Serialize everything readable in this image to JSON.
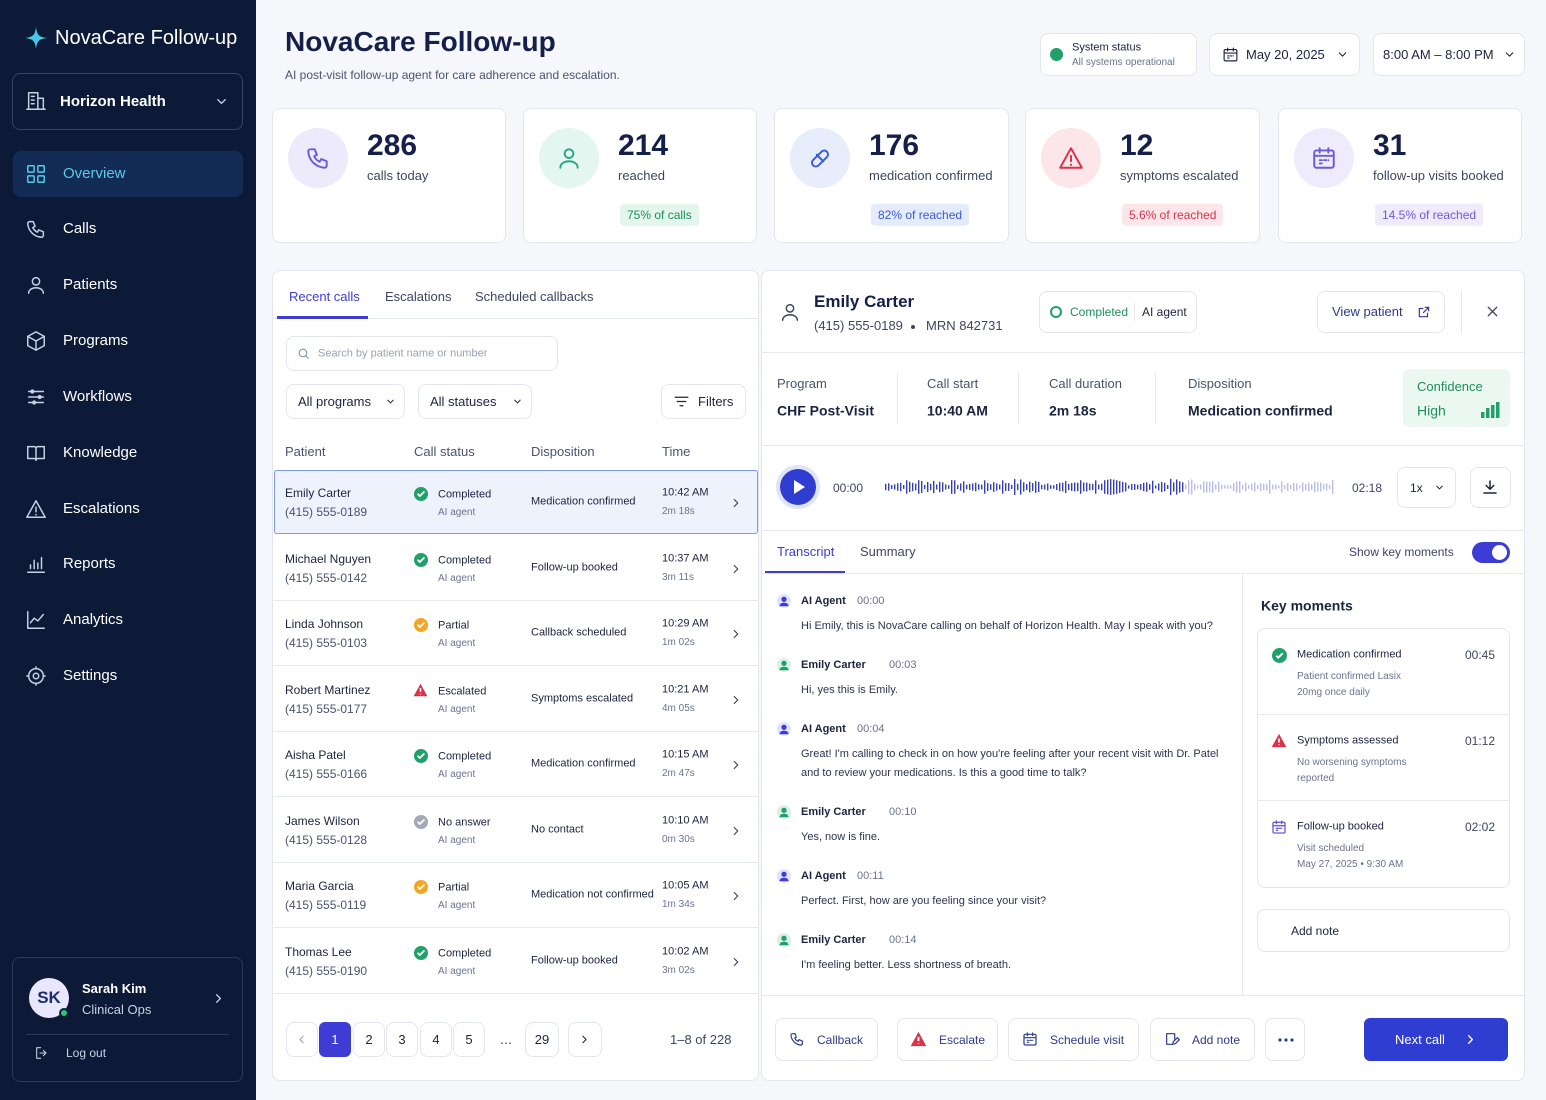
{
  "sidebar": {
    "brand": "NovaCare Follow-up",
    "org": "Horizon Health",
    "nav": [
      "Overview",
      "Calls",
      "Patients",
      "Programs",
      "Workflows",
      "Knowledge",
      "Escalations",
      "Reports",
      "Analytics",
      "Settings"
    ],
    "user": {
      "initials": "SK",
      "name": "Sarah Kim",
      "role": "Clinical Ops"
    },
    "logout": "Log out"
  },
  "header": {
    "title": "NovaCare Follow-up",
    "subtitle": "AI post-visit follow-up agent for care adherence and escalation.",
    "status_title": "System status",
    "status_text": "All systems operational",
    "date": "May 20, 2025",
    "hours": "8:00 AM – 8:00 PM"
  },
  "stats": [
    {
      "value": 286,
      "label": "calls today"
    },
    {
      "value": 214,
      "label": "reached",
      "badge": "75% of calls"
    },
    {
      "value": 176,
      "label": "medication confirmed",
      "badge": "82% of reached"
    },
    {
      "value": 12,
      "label": "symptoms escalated",
      "badge": "5.6% of reached"
    },
    {
      "value": 31,
      "label": "follow-up visits booked",
      "badge": "14.5% of reached"
    }
  ],
  "calls_panel": {
    "tabs": [
      "Recent calls",
      "Escalations",
      "Scheduled callbacks"
    ],
    "search_placeholder": "Search by patient name or number",
    "filters": [
      "All programs",
      "All statuses"
    ],
    "filters_button": "Filters",
    "columns": [
      "Patient",
      "Call status",
      "Disposition",
      "Time"
    ],
    "rows": [
      {
        "name": "Emily Carter",
        "phone": "(415) 555-0189",
        "status": "Completed",
        "agent": "AI agent",
        "disposition": "Medication confirmed",
        "time": "10:42 AM",
        "duration": "2m 18s",
        "color": "#22a06b"
      },
      {
        "name": "Michael Nguyen",
        "phone": "(415) 555-0142",
        "status": "Completed",
        "agent": "AI agent",
        "disposition": "Follow-up booked",
        "time": "10:37 AM",
        "duration": "3m 11s",
        "color": "#22a06b"
      },
      {
        "name": "Linda Johnson",
        "phone": "(415) 555-0103",
        "status": "Partial",
        "agent": "AI agent",
        "disposition": "Callback scheduled",
        "time": "10:29 AM",
        "duration": "1m 02s",
        "color": "#f5a524"
      },
      {
        "name": "Robert Martinez",
        "phone": "(415) 555-0177",
        "status": "Escalated",
        "agent": "AI agent",
        "disposition": "Symptoms escalated",
        "time": "10:21 AM",
        "duration": "4m 05s",
        "color": "#d9324a"
      },
      {
        "name": "Aisha Patel",
        "phone": "(415) 555-0166",
        "status": "Completed",
        "agent": "AI agent",
        "disposition": "Medication confirmed",
        "time": "10:15 AM",
        "duration": "2m 47s",
        "color": "#22a06b"
      },
      {
        "name": "James Wilson",
        "phone": "(415) 555-0128",
        "status": "No answer",
        "agent": "AI agent",
        "disposition": "No contact",
        "time": "10:10 AM",
        "duration": "0m 30s",
        "color": "#a3a9b8"
      },
      {
        "name": "Maria Garcia",
        "phone": "(415) 555-0119",
        "status": "Partial",
        "agent": "AI agent",
        "disposition": "Medication not confirmed",
        "time": "10:05 AM",
        "duration": "1m 34s",
        "color": "#f5a524"
      },
      {
        "name": "Thomas Lee",
        "phone": "(415) 555-0190",
        "status": "Completed",
        "agent": "AI agent",
        "disposition": "Follow-up booked",
        "time": "10:02 AM",
        "duration": "3m 02s",
        "color": "#22a06b"
      }
    ],
    "pages": [
      1,
      2,
      3,
      4,
      5,
      "…",
      29
    ],
    "range": "1–8 of 228"
  },
  "detail": {
    "name": "Emily Carter",
    "phone": "(415) 555-0189",
    "mrn": "MRN 842731",
    "status": "Completed",
    "agent": "AI agent",
    "view_button": "View patient",
    "fields": [
      {
        "label": "Program",
        "value": "CHF Post-Visit"
      },
      {
        "label": "Call start",
        "value": "10:40 AM"
      },
      {
        "label": "Call duration",
        "value": "2m 18s"
      },
      {
        "label": "Disposition",
        "value": "Medication confirmed"
      }
    ],
    "confidence": {
      "label": "Confidence",
      "value": "High"
    },
    "audio": {
      "start": "00:00",
      "end": "02:18",
      "speed": "1x"
    },
    "tabs": [
      "Transcript",
      "Summary"
    ],
    "toggle_label": "Show key moments",
    "transcript": [
      {
        "speaker": "AI Agent",
        "time": "00:00",
        "text": "Hi Emily, this is NovaCare calling on behalf of Horizon Health. May I speak with you?"
      },
      {
        "speaker": "Emily Carter",
        "time": "00:03",
        "text": "Hi, yes this is Emily."
      },
      {
        "speaker": "AI Agent",
        "time": "00:04",
        "text": "Great! I'm calling to check in on how you're feeling after your recent visit with Dr. Patel and to review your medications. Is this a good time to talk?"
      },
      {
        "speaker": "Emily Carter",
        "time": "00:10",
        "text": "Yes, now is fine."
      },
      {
        "speaker": "AI Agent",
        "time": "00:11",
        "text": "Perfect. First, how are you feeling since your visit?"
      },
      {
        "speaker": "Emily Carter",
        "time": "00:14",
        "text": "I'm feeling better. Less shortness of breath."
      }
    ],
    "key_moments": {
      "title": "Key moments",
      "items": [
        {
          "title": "Medication confirmed",
          "time": "00:45",
          "lines": [
            "Patient confirmed Lasix",
            "20mg once daily"
          ]
        },
        {
          "title": "Symptoms assessed",
          "time": "01:12",
          "lines": [
            "No worsening symptoms",
            "reported"
          ]
        },
        {
          "title": "Follow-up booked",
          "time": "02:02",
          "lines": [
            "Visit scheduled",
            "May 27, 2025  •  9:30 AM"
          ]
        }
      ],
      "add_note": "Add note"
    },
    "actions": [
      "Callback",
      "Escalate",
      "Schedule visit",
      "Add note"
    ],
    "next_button": "Next call"
  }
}
